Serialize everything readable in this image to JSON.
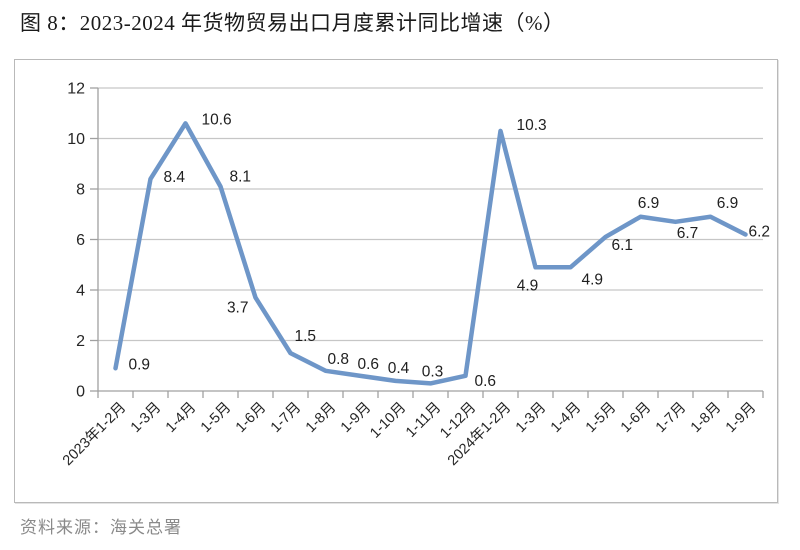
{
  "figure": {
    "title": "图 8：2023-2024 年货物贸易出口月度累计同比增速（%）",
    "source": "资料来源：海关总署"
  },
  "chart_data": {
    "type": "line",
    "categories": [
      "2023年1-2月",
      "1-3月",
      "1-4月",
      "1-5月",
      "1-6月",
      "1-7月",
      "1-8月",
      "1-9月",
      "1-10月",
      "1-11月",
      "1-12月",
      "2024年1-2月",
      "1-3月",
      "1-4月",
      "1-5月",
      "1-6月",
      "1-7月",
      "1-8月",
      "1-9月"
    ],
    "values": [
      0.9,
      8.4,
      10.6,
      8.1,
      3.7,
      1.5,
      0.8,
      0.6,
      0.4,
      0.3,
      0.6,
      10.3,
      4.9,
      4.9,
      6.1,
      6.9,
      6.7,
      6.9,
      6.2
    ],
    "data_labels": [
      "0.9",
      "8.4",
      "10.6",
      "8.1",
      "3.7",
      "1.5",
      "0.8",
      "0.6",
      "0.4",
      "0.3",
      "0.6",
      "10.3",
      "4.9",
      "4.9",
      "6.1",
      "6.9",
      "6.7",
      "6.9",
      "6.2"
    ],
    "title": "",
    "xlabel": "",
    "ylabel": "",
    "ylim": [
      0,
      12
    ],
    "yticks": [
      0,
      2,
      4,
      6,
      8,
      10,
      12
    ],
    "grid": true,
    "legend_position": "none",
    "colors": {
      "line": "#6E96C8",
      "grid": "#C6C6C6",
      "axis": "#A0A0A0",
      "tick_label": "#262626",
      "data_label": "#1F1F1F"
    }
  }
}
